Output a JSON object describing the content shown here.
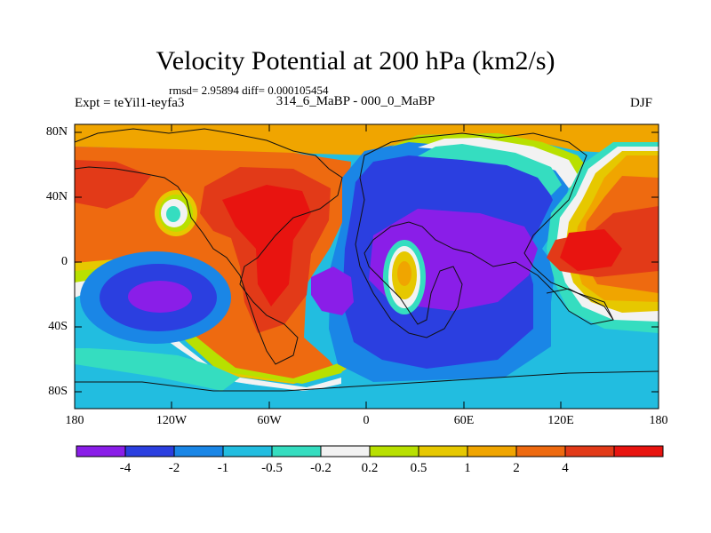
{
  "title": "Velocity Potential at 200 hPa (km2/s)",
  "stats": "rmsd= 2.95894 diff= 0.000105454",
  "left_label": "Expt = teYil1-teyfa3",
  "center_label": "314_6_MaBP - 000_0_MaBP",
  "right_label": "DJF",
  "map": {
    "lat_labels": [
      "80N",
      "40N",
      "0",
      "40S",
      "80S"
    ],
    "lon_labels": [
      "180",
      "120W",
      "60W",
      "0",
      "60E",
      "120E",
      "180"
    ]
  },
  "colorbar": {
    "colors": [
      "#8a1ee8",
      "#2b3fe0",
      "#1a86e6",
      "#22bde0",
      "#35ddc0",
      "#f2f2f2",
      "#b8e000",
      "#e6c800",
      "#f0a500",
      "#ee6a10",
      "#e23a18",
      "#e81410"
    ],
    "labels": [
      "-4",
      "-2",
      "-1",
      "-0.5",
      "-0.2",
      "0.2",
      "0.5",
      "1",
      "2",
      "4"
    ]
  }
}
